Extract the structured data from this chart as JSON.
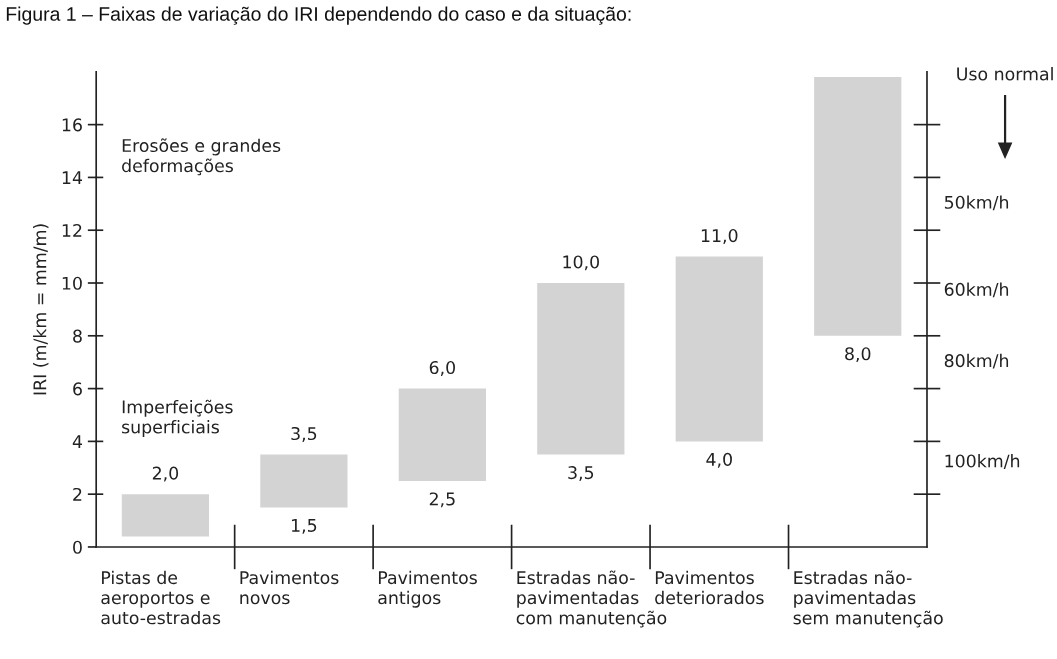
{
  "chart_data": {
    "type": "bar",
    "title": "Figura 1 – Faixas de variação do IRI dependendo do caso e da situação:",
    "ylabel": "IRI (m/km = mm/m)",
    "categories": [
      "Pistas de\naeroportos e\nauto-estradas",
      "Pavimentos\nnovos",
      "Pavimentos\nantigos",
      "Estradas não-\npavimentadas\ncom manutenção",
      "Pavimentos\ndeteriorados",
      "Estradas não-\npavimentadas\nsem manutenção"
    ],
    "base": [
      0.4,
      1.5,
      2.5,
      3.5,
      4.0,
      8.0
    ],
    "values": [
      1.6,
      2.0,
      3.5,
      6.5,
      7.0,
      9.8
    ],
    "color": "#d3d3d3",
    "ylim": [
      0,
      18
    ],
    "yticks": [
      0,
      2,
      4,
      6,
      8,
      10,
      12,
      14,
      16
    ],
    "annotations": [
      {
        "text": "2,0",
        "x": "Pistas de\naeroportos e\nauto-estradas",
        "y": 2.0
      },
      {
        "text": "3,5",
        "x": "Pavimentos\nnovos",
        "y": 3.5
      },
      {
        "text": "1,5",
        "x": "Pavimentos\nnovos",
        "y": 1.5
      },
      {
        "text": "6,0",
        "x": "Pavimentos\nantigos",
        "y": 6.0
      },
      {
        "text": "2,5",
        "x": "Pavimentos\nantigos",
        "y": 2.5
      },
      {
        "text": "10,0",
        "x": "Estradas não-\npavimentadas\ncom manutenção",
        "y": 10.0
      },
      {
        "text": "3,5",
        "x": "Estradas não-\npavimentadas\ncom manutenção",
        "y": 3.5
      },
      {
        "text": "11,0",
        "x": "Pavimentos\ndeteriorados",
        "y": 11.0
      },
      {
        "text": "4,0",
        "x": "Pavimentos\ndeteriorados",
        "y": 4.0
      },
      {
        "text": "8,0",
        "x": "Estradas não-\npavimentadas\nsem manutenção",
        "y": 8.0
      },
      "Erosões e grandes\ndeformações",
      "Imperfeições\nsuperficiais",
      "Uso normal",
      "50km/h",
      "60km/h",
      "80km/h",
      "100km/h"
    ],
    "grid": false,
    "legend": false
  }
}
